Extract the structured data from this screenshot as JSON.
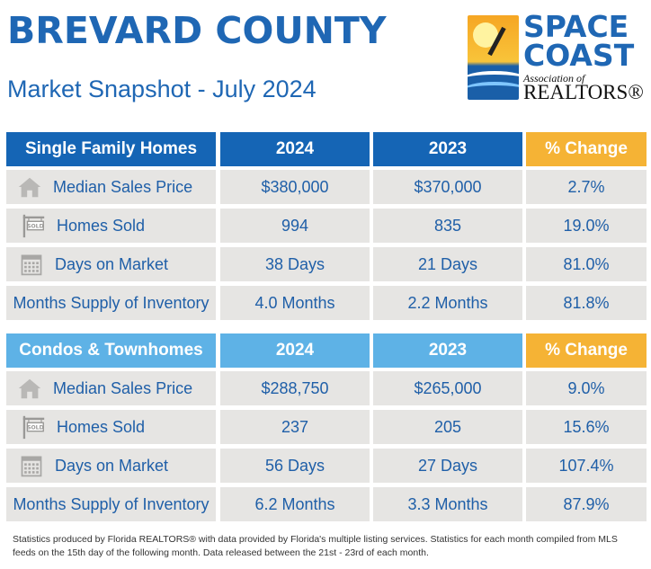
{
  "header": {
    "title": "BREVARD COUNTY",
    "subtitle": "Market Snapshot - July 2024"
  },
  "logo": {
    "line1": "SPACE",
    "line2": "COAST",
    "assoc": "Association of",
    "realtors": "REALTORS®"
  },
  "single_family": {
    "header": [
      "Single Family Homes",
      "2024",
      "2023",
      "% Change"
    ],
    "rows": [
      {
        "icon": "house-icon",
        "label": "Median Sales Price",
        "v2024": "$380,000",
        "v2023": "$370,000",
        "change": "2.7%"
      },
      {
        "icon": "sold-sign-icon",
        "label": "Homes Sold",
        "v2024": "994",
        "v2023": "835",
        "change": "19.0%"
      },
      {
        "icon": "calendar-icon",
        "label": "Days on Market",
        "v2024": "38 Days",
        "v2023": "21 Days",
        "change": "81.0%"
      },
      {
        "icon": "",
        "label": "Months Supply of Inventory",
        "v2024": "4.0 Months",
        "v2023": "2.2 Months",
        "change": "81.8%"
      }
    ]
  },
  "condos": {
    "header": [
      "Condos & Townhomes",
      "2024",
      "2023",
      "% Change"
    ],
    "rows": [
      {
        "icon": "house-icon",
        "label": "Median Sales Price",
        "v2024": "$288,750",
        "v2023": "$265,000",
        "change": "9.0%"
      },
      {
        "icon": "sold-sign-icon",
        "label": "Homes Sold",
        "v2024": "237",
        "v2023": "205",
        "change": "15.6%"
      },
      {
        "icon": "calendar-icon",
        "label": "Days on Market",
        "v2024": "56 Days",
        "v2023": "27 Days",
        "change": "107.4%"
      },
      {
        "icon": "",
        "label": "Months Supply of Inventory",
        "v2024": "6.2 Months",
        "v2023": "3.3 Months",
        "change": "87.9%"
      }
    ]
  },
  "footer": {
    "text": "Statistics produced by Florida REALTORS® with data provided by Florida's multiple listing services. Statistics for each month compiled from MLS feeds on the 15th day of the following month. Data released between the 21st - 23rd of each month."
  },
  "colors": {
    "title_blue": "#1f67b4",
    "header_dark_blue": "#1565b5",
    "header_light_blue": "#5eb2e6",
    "header_orange": "#f5b335",
    "row_grey": "#e6e5e3"
  }
}
